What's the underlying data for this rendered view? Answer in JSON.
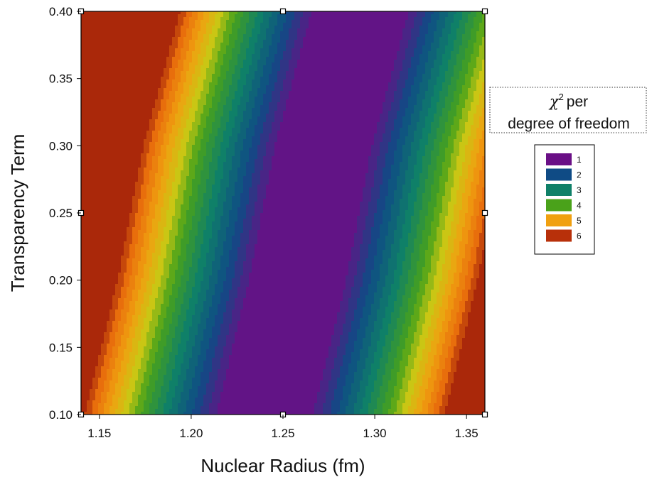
{
  "chart_data": {
    "type": "heatmap",
    "title": "",
    "xlabel": "Nuclear Radius (fm)",
    "ylabel": "Transparency Term",
    "xlim": [
      1.14,
      1.36
    ],
    "ylim": [
      0.1,
      0.4
    ],
    "x_ticks": [
      1.15,
      1.2,
      1.25,
      1.3,
      1.35
    ],
    "y_ticks": [
      0.1,
      0.15,
      0.2,
      0.25,
      0.3,
      0.35,
      0.4
    ],
    "x_tick_labels": [
      "1.15",
      "1.20",
      "1.25",
      "1.30",
      "1.35"
    ],
    "y_tick_labels": [
      "0.10",
      "0.15",
      "0.20",
      "0.25",
      "0.30",
      "0.35",
      "0.40"
    ],
    "grid": false,
    "colorbar": {
      "title_symbol": "χ",
      "title_superscript": "2",
      "title_rest": "per",
      "title_line2": "degree of freedom",
      "placement": "right",
      "levels": [
        {
          "label": "1",
          "value": 1,
          "color": "#6a0f86"
        },
        {
          "label": "2",
          "value": 2,
          "color": "#0f4b85"
        },
        {
          "label": "3",
          "value": 3,
          "color": "#0f8068"
        },
        {
          "label": "4",
          "value": 4,
          "color": "#4aa21a"
        },
        {
          "label": "5",
          "value": 5,
          "color": "#f0a010"
        },
        {
          "label": "6",
          "value": 6,
          "color": "#b8300a"
        }
      ]
    },
    "valley": {
      "description_points": [
        {
          "y": 0.1,
          "x_min": 1.24
        },
        {
          "y": 0.2,
          "x_min": 1.258
        },
        {
          "y": 0.3,
          "x_min": 1.272
        },
        {
          "y": 0.4,
          "x_min": 1.292
        }
      ],
      "chi2_min": 1
    },
    "chi2_max": 6.5
  }
}
